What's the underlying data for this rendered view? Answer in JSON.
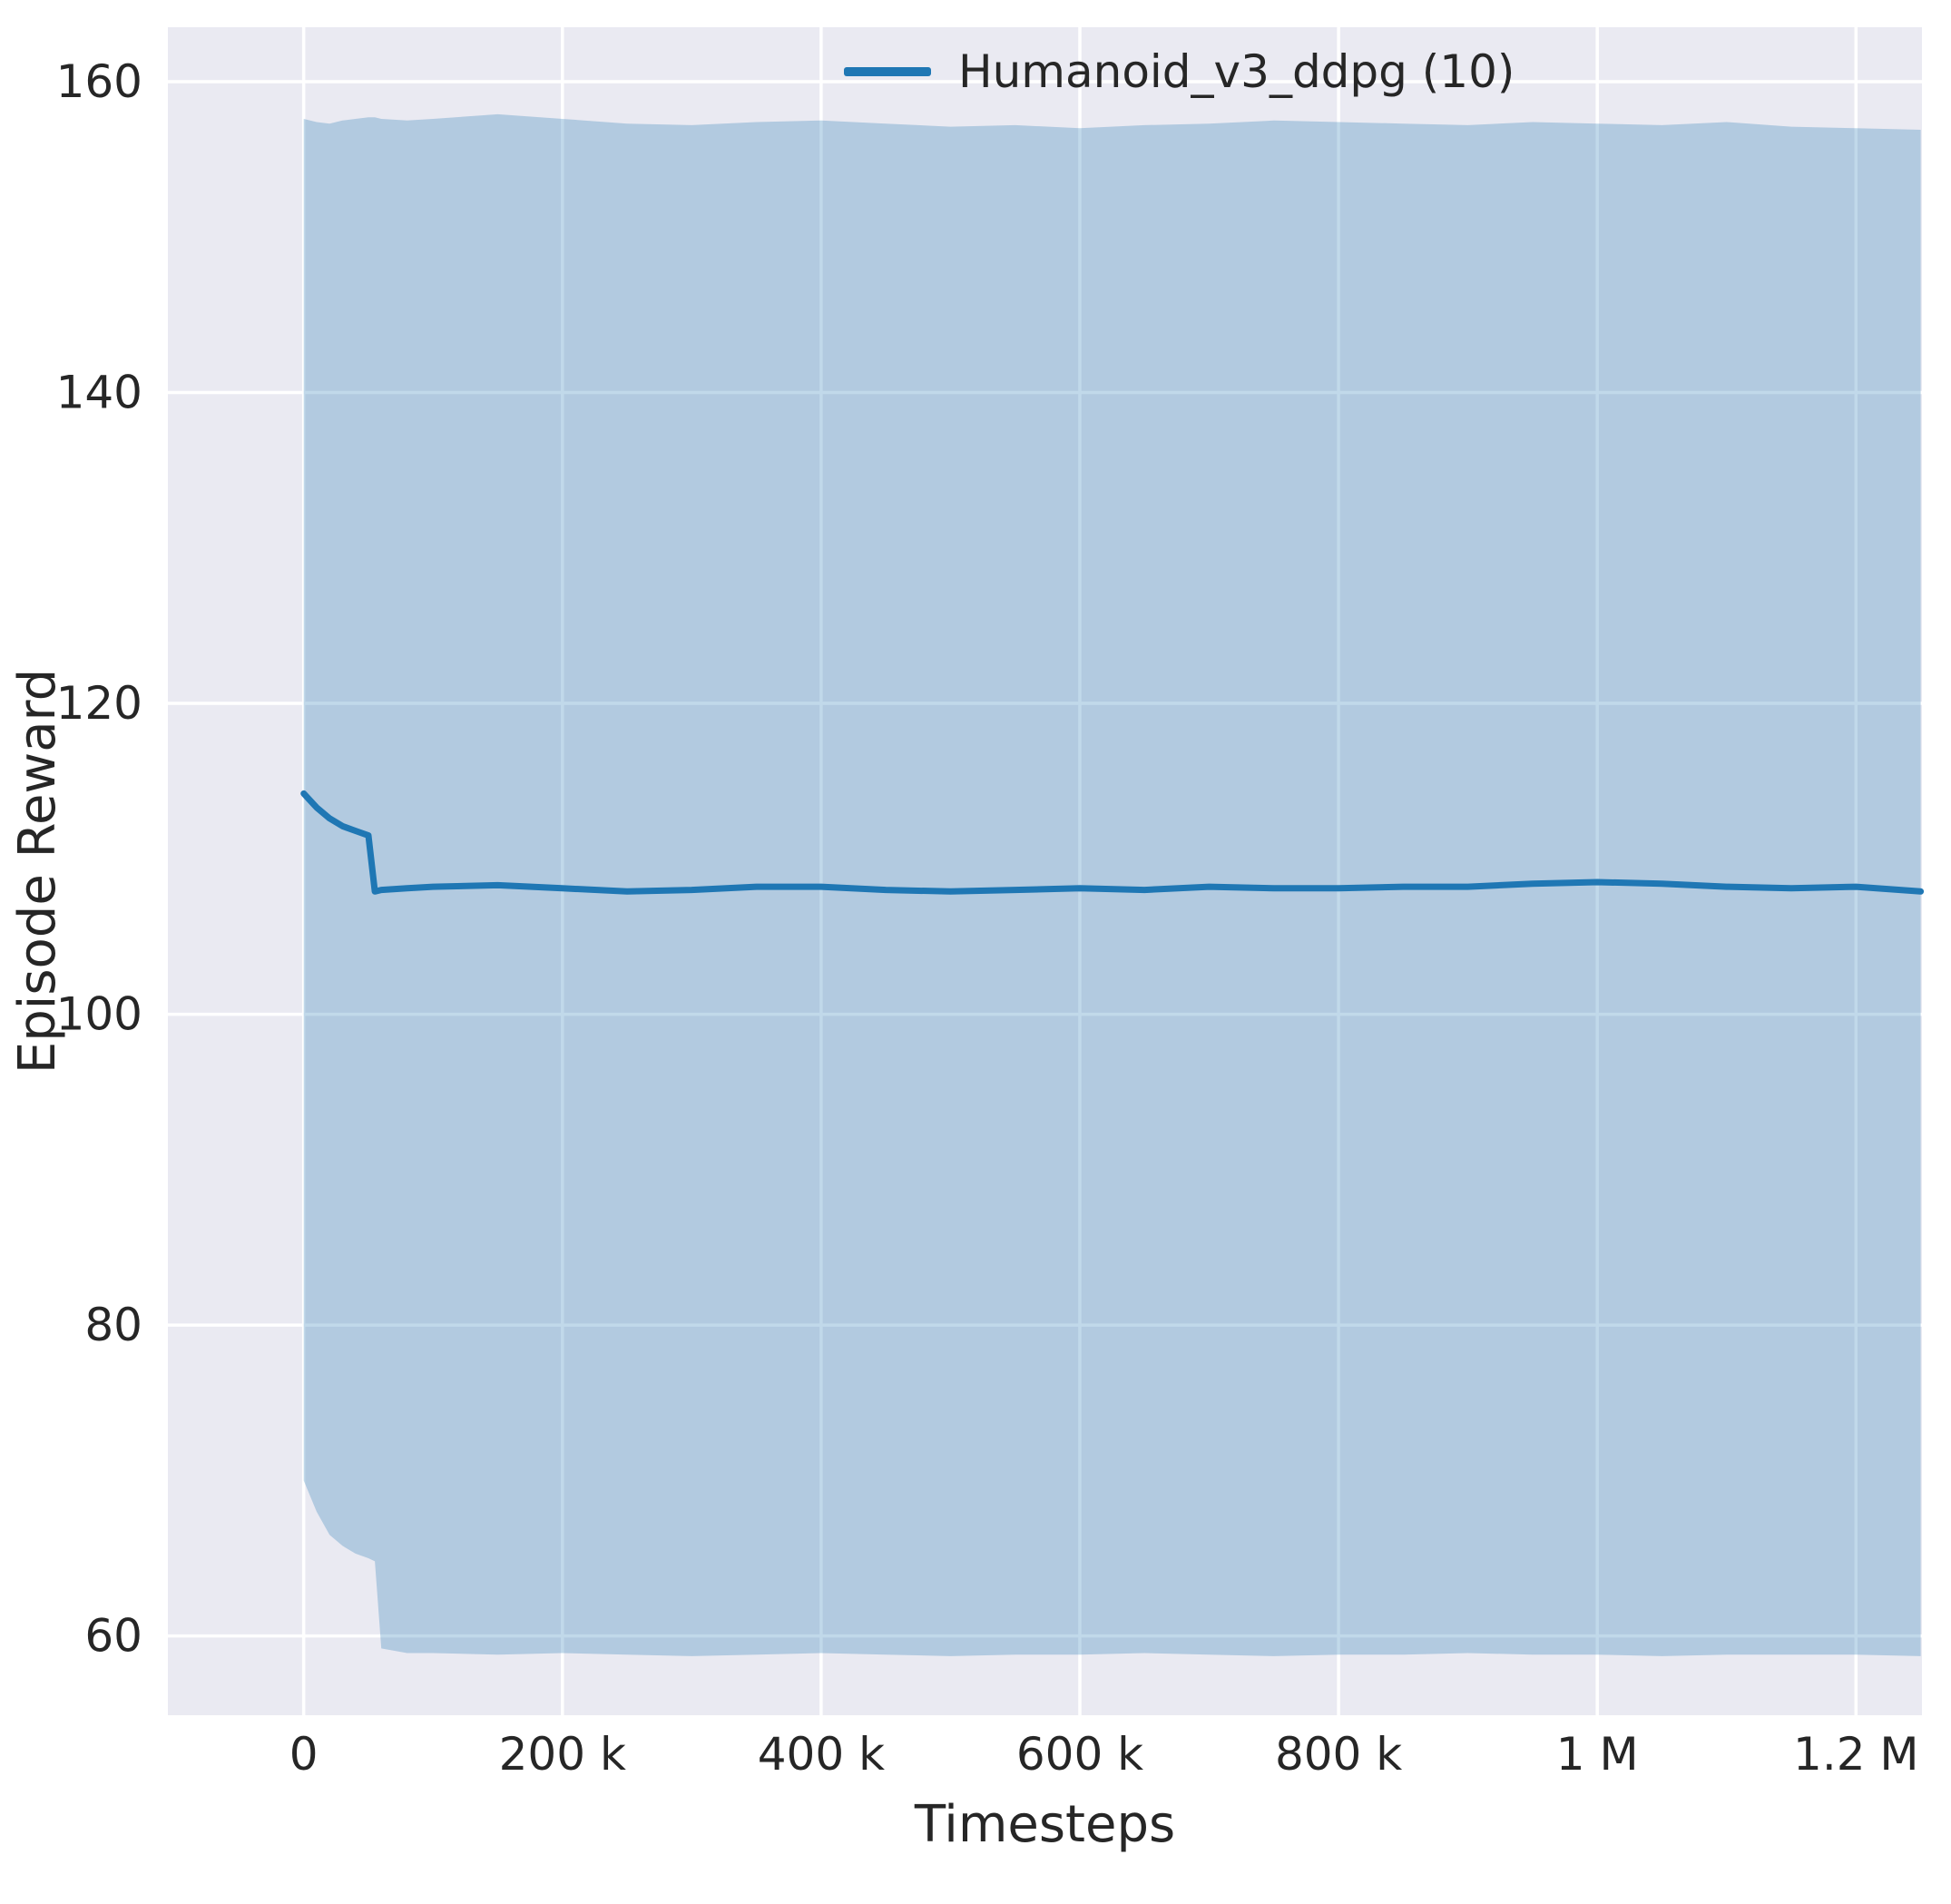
{
  "figure": {
    "background": "#ffffff",
    "plot_background": "#eaeaf2",
    "grid_color": "#ffffff",
    "tick_label_color": "#262626",
    "axis_label_color": "#262626"
  },
  "chart_data": {
    "type": "line",
    "title": "",
    "xlabel": "Timesteps",
    "ylabel": "Episode Reward",
    "xlim": [
      -105000,
      1251000
    ],
    "ylim": [
      54.9,
      163.5
    ],
    "grid": true,
    "x_ticks": [
      {
        "v": 0,
        "label": "0"
      },
      {
        "v": 200000,
        "label": "200 k"
      },
      {
        "v": 400000,
        "label": "400 k"
      },
      {
        "v": 600000,
        "label": "600 k"
      },
      {
        "v": 800000,
        "label": "800 k"
      },
      {
        "v": 1000000,
        "label": "1 M"
      },
      {
        "v": 1200000,
        "label": "1.2 M"
      }
    ],
    "y_ticks": [
      {
        "v": 60,
        "label": "60"
      },
      {
        "v": 80,
        "label": "80"
      },
      {
        "v": 100,
        "label": "100"
      },
      {
        "v": 120,
        "label": "120"
      },
      {
        "v": 140,
        "label": "140"
      },
      {
        "v": 160,
        "label": "160"
      }
    ],
    "legend": {
      "position": "upper right",
      "entries": [
        {
          "label": "Humanoid_v3_ddpg (10)",
          "color": "#1f77b4"
        }
      ]
    },
    "series": [
      {
        "name": "Humanoid_v3_ddpg (10)",
        "color": "#1f77b4",
        "band_color": "#1f77b4",
        "band_opacity": 0.28,
        "line_width": 7,
        "x": [
          0,
          10000,
          20000,
          30000,
          40000,
          50000,
          55000,
          60000,
          80000,
          100000,
          150000,
          200000,
          250000,
          300000,
          350000,
          400000,
          450000,
          500000,
          550000,
          600000,
          650000,
          700000,
          750000,
          800000,
          850000,
          900000,
          950000,
          1000000,
          1050000,
          1100000,
          1150000,
          1200000,
          1250000
        ],
        "mean": [
          114.2,
          113.3,
          112.6,
          112.1,
          111.8,
          111.5,
          107.9,
          108.0,
          108.1,
          108.2,
          108.3,
          108.1,
          107.9,
          108.0,
          108.2,
          108.2,
          108.0,
          107.9,
          108.0,
          108.1,
          108.0,
          108.2,
          108.1,
          108.1,
          108.2,
          108.2,
          108.4,
          108.5,
          108.4,
          108.2,
          108.1,
          108.2,
          107.9
        ],
        "upper": [
          157.6,
          157.4,
          157.3,
          157.5,
          157.6,
          157.7,
          157.7,
          157.6,
          157.5,
          157.6,
          157.9,
          157.6,
          157.3,
          157.2,
          157.4,
          157.5,
          157.3,
          157.1,
          157.2,
          157.0,
          157.2,
          157.3,
          157.5,
          157.4,
          157.3,
          157.2,
          157.4,
          157.3,
          157.2,
          157.4,
          157.1,
          157.0,
          156.9
        ],
        "lower": [
          70.0,
          68.0,
          66.5,
          65.8,
          65.3,
          65.0,
          64.8,
          59.2,
          58.9,
          58.9,
          58.8,
          58.9,
          58.8,
          58.7,
          58.8,
          58.9,
          58.8,
          58.7,
          58.8,
          58.8,
          58.9,
          58.8,
          58.7,
          58.8,
          58.8,
          58.9,
          58.8,
          58.8,
          58.7,
          58.8,
          58.8,
          58.8,
          58.7
        ]
      }
    ]
  }
}
